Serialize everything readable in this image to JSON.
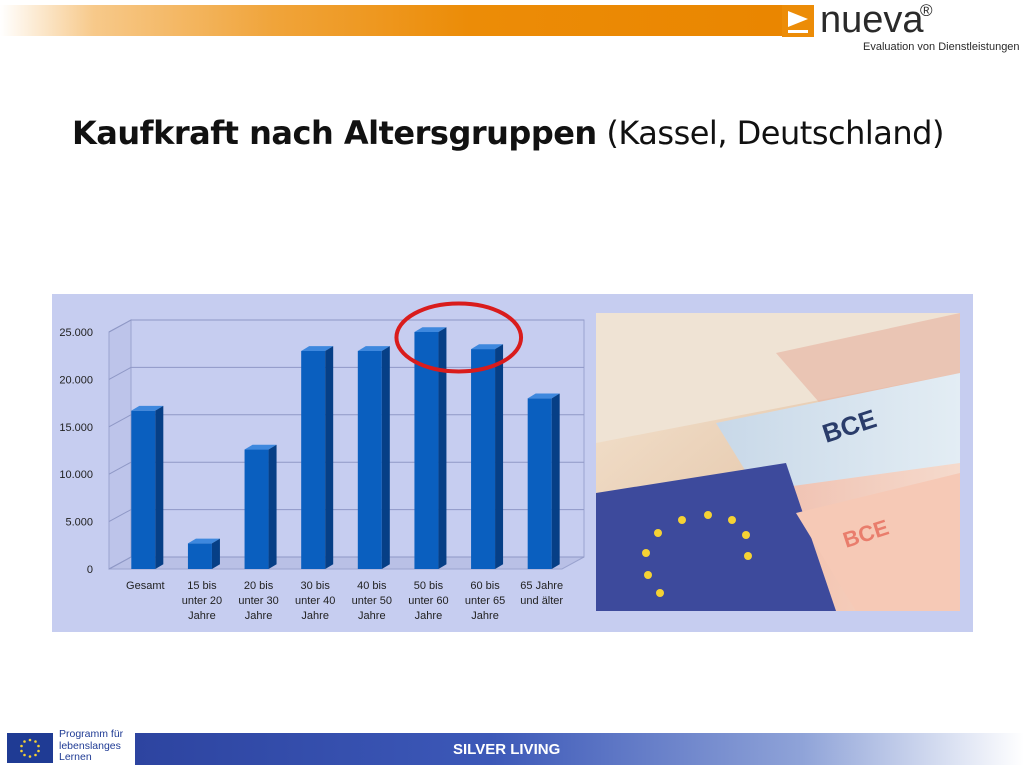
{
  "logo": {
    "name": "nueva",
    "reg": "®",
    "tagline": "Evaluation von Dienstleistungen"
  },
  "title": {
    "bold": "Kaufkraft nach Altersgruppen",
    "rest": " (Kassel, Deutschland)"
  },
  "chart_data": {
    "type": "bar",
    "categories": [
      [
        "Gesamt"
      ],
      [
        "15 bis",
        "unter 20",
        "Jahre"
      ],
      [
        "20 bis",
        "unter 30",
        "Jahre"
      ],
      [
        "30 bis",
        "unter 40",
        "Jahre"
      ],
      [
        "40 bis",
        "unter 50",
        "Jahre"
      ],
      [
        "50 bis",
        "unter 60",
        "Jahre"
      ],
      [
        "60 bis",
        "unter 65",
        "Jahre"
      ],
      [
        "65 Jahre",
        "und älter"
      ]
    ],
    "values": [
      16700,
      2700,
      12600,
      23000,
      23000,
      25000,
      23200,
      18000
    ],
    "ylim": [
      0,
      25000
    ],
    "yticks": [
      "0",
      "5.000",
      "10.000",
      "15.000",
      "20.000",
      "25.000"
    ],
    "ytick_values": [
      0,
      5000,
      10000,
      15000,
      20000,
      25000
    ],
    "bar_color": "#0a5fbf",
    "grid": true,
    "highlight": {
      "categories": [
        5,
        6
      ],
      "color": "#d91c1c",
      "shape": "ellipse"
    }
  },
  "footer": {
    "eu_text": [
      "Programm für",
      "lebenslanges",
      "Lernen"
    ],
    "label": "SILVER LIVING"
  },
  "colors": {
    "accent": "#ec8c07",
    "panel": "#c6cdf0",
    "footer": "#2d44a0"
  }
}
